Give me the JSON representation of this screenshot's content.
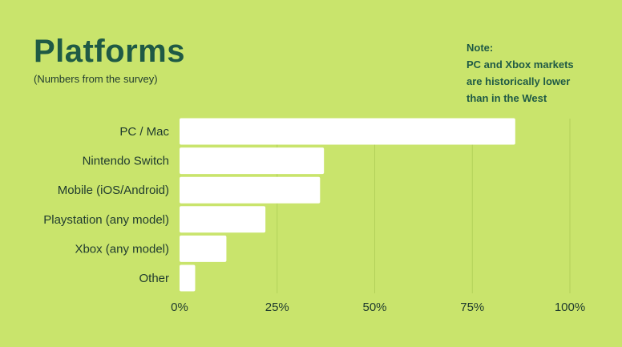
{
  "slide": {
    "title": "Platforms",
    "subtitle": "(Numbers from the survey)",
    "note_lines": [
      "Note:",
      "PC and Xbox markets",
      "are historically lower",
      "than in the West"
    ]
  },
  "colors": {
    "background": "#c9e46c",
    "bar": "#ffffff",
    "grid": "#b3d15a",
    "title": "#1f5a45",
    "text": "#1f3a2e"
  },
  "chart_data": {
    "type": "bar",
    "orientation": "horizontal",
    "categories": [
      "PC / Mac",
      "Nintendo Switch",
      "Mobile (iOS/Android)",
      "Playstation (any model)",
      "Xbox (any model)",
      "Other"
    ],
    "values": [
      86,
      37,
      36,
      22,
      12,
      4
    ],
    "xlim": [
      0,
      100
    ],
    "xticks": [
      "0%",
      "25%",
      "50%",
      "75%",
      "100%"
    ],
    "grid": "vertical",
    "title": "Platforms"
  }
}
